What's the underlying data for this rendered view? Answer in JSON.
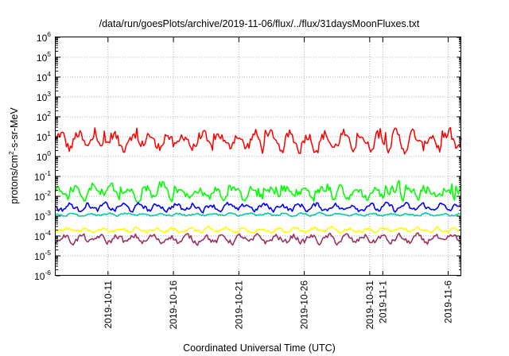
{
  "chart_data": {
    "type": "line",
    "title": "/data/run/goesPlots/archive/2019-11-06/flux/../flux/31daysMoonFluxes.txt",
    "xlabel": "Coordinated Universal Time (UTC)",
    "ylabel_parts": [
      "protons/cm",
      "2",
      "-s-sr-MeV"
    ],
    "y_scale": "log",
    "ylim": [
      1e-06,
      1000000.0
    ],
    "y_ticks": [
      {
        "base": "10",
        "exp": "-6"
      },
      {
        "base": "10",
        "exp": "-5"
      },
      {
        "base": "10",
        "exp": "-4"
      },
      {
        "base": "10",
        "exp": "-3"
      },
      {
        "base": "10",
        "exp": "-2"
      },
      {
        "base": "10",
        "exp": "-1"
      },
      {
        "base": "10",
        "exp": "0"
      },
      {
        "base": "10",
        "exp": "1"
      },
      {
        "base": "10",
        "exp": "2"
      },
      {
        "base": "10",
        "exp": "3"
      },
      {
        "base": "10",
        "exp": "4"
      },
      {
        "base": "10",
        "exp": "5"
      },
      {
        "base": "10",
        "exp": "6"
      }
    ],
    "xlim": [
      "2019-10-07",
      "2019-11-07"
    ],
    "x_ticks": [
      "2019-10-11",
      "2019-10-16",
      "2019-10-21",
      "2019-10-26",
      "2019-10-31",
      "2019-11-1",
      "2019-11-6"
    ],
    "grid": true,
    "series": [
      {
        "color": "#ff0000",
        "median": 6,
        "low": 0.4,
        "high": 60,
        "spread": 0.55
      },
      {
        "color": "#00ff00",
        "median": 0.014,
        "low": 0.003,
        "high": 0.08,
        "spread": 0.35
      },
      {
        "color": "#00ccaa",
        "median": 0.0012,
        "low": 0.0008,
        "high": 0.003,
        "spread": 0.08
      },
      {
        "color": "#0000ff",
        "median": 0.0028,
        "low": 0.0009,
        "high": 0.01,
        "spread": 0.22
      },
      {
        "color": "#ffff00",
        "median": 0.0002,
        "low": 0.0001,
        "high": 0.0006,
        "spread": 0.15
      },
      {
        "color": "#993366",
        "median": 7e-05,
        "low": 2e-05,
        "high": 0.0003,
        "spread": 0.25
      }
    ]
  }
}
